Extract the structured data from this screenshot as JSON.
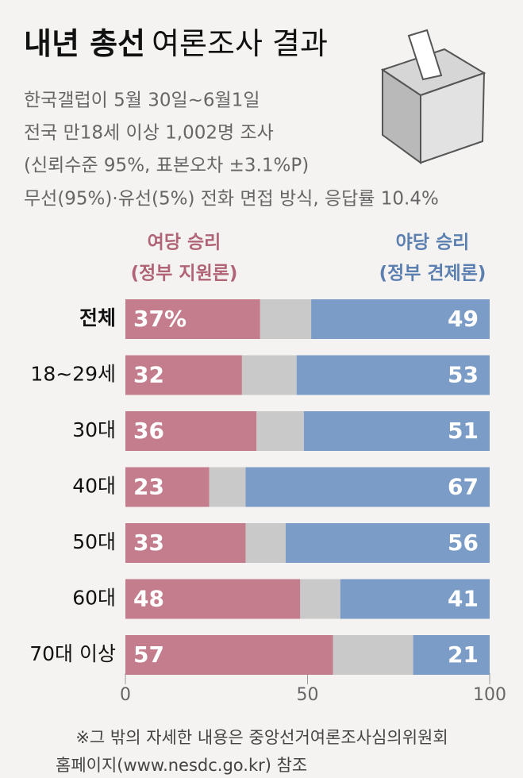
{
  "header": {
    "title": "내년 총선",
    "title_rest": "여론조사 결과",
    "subtitle": [
      "한국갤럽이 5월 30일~6월1일",
      "전국 만18세 이상 1,002명 조사",
      "(신뢰수준 95%, 표본오차 ±3.1%P)",
      "무선(95%)·유선(5%) 전화 면접 방식, 응답률 10.4%"
    ]
  },
  "chart_data": {
    "type": "stacked-bar-horizontal",
    "categories": [
      "전체",
      "18~29세",
      "30대",
      "40대",
      "50대",
      "60대",
      "70대 이상"
    ],
    "series": [
      {
        "name": [
          "여당 승리",
          "(정부 지원론)"
        ],
        "color": "#c47d8c",
        "values": [
          37,
          32,
          36,
          23,
          33,
          48,
          57
        ],
        "value_labels": [
          "37%",
          "32",
          "36",
          "23",
          "33",
          "48",
          "57"
        ]
      },
      {
        "color": "#c9c9c9",
        "values": [
          14,
          15,
          13,
          10,
          11,
          11,
          22
        ]
      },
      {
        "name": [
          "야당 승리",
          "(정부 견제론)"
        ],
        "color": "#7b9cc6",
        "values": [
          49,
          53,
          51,
          67,
          56,
          41,
          21
        ]
      }
    ],
    "xlim": [
      0,
      100
    ],
    "xticks": [
      0,
      50,
      100
    ]
  },
  "footnote": [
    "※그 밖의 자세한 내용은 중앙선거여론조사심의위원회",
    "홈페이지(www.nesdc.go.kr) 참조"
  ]
}
